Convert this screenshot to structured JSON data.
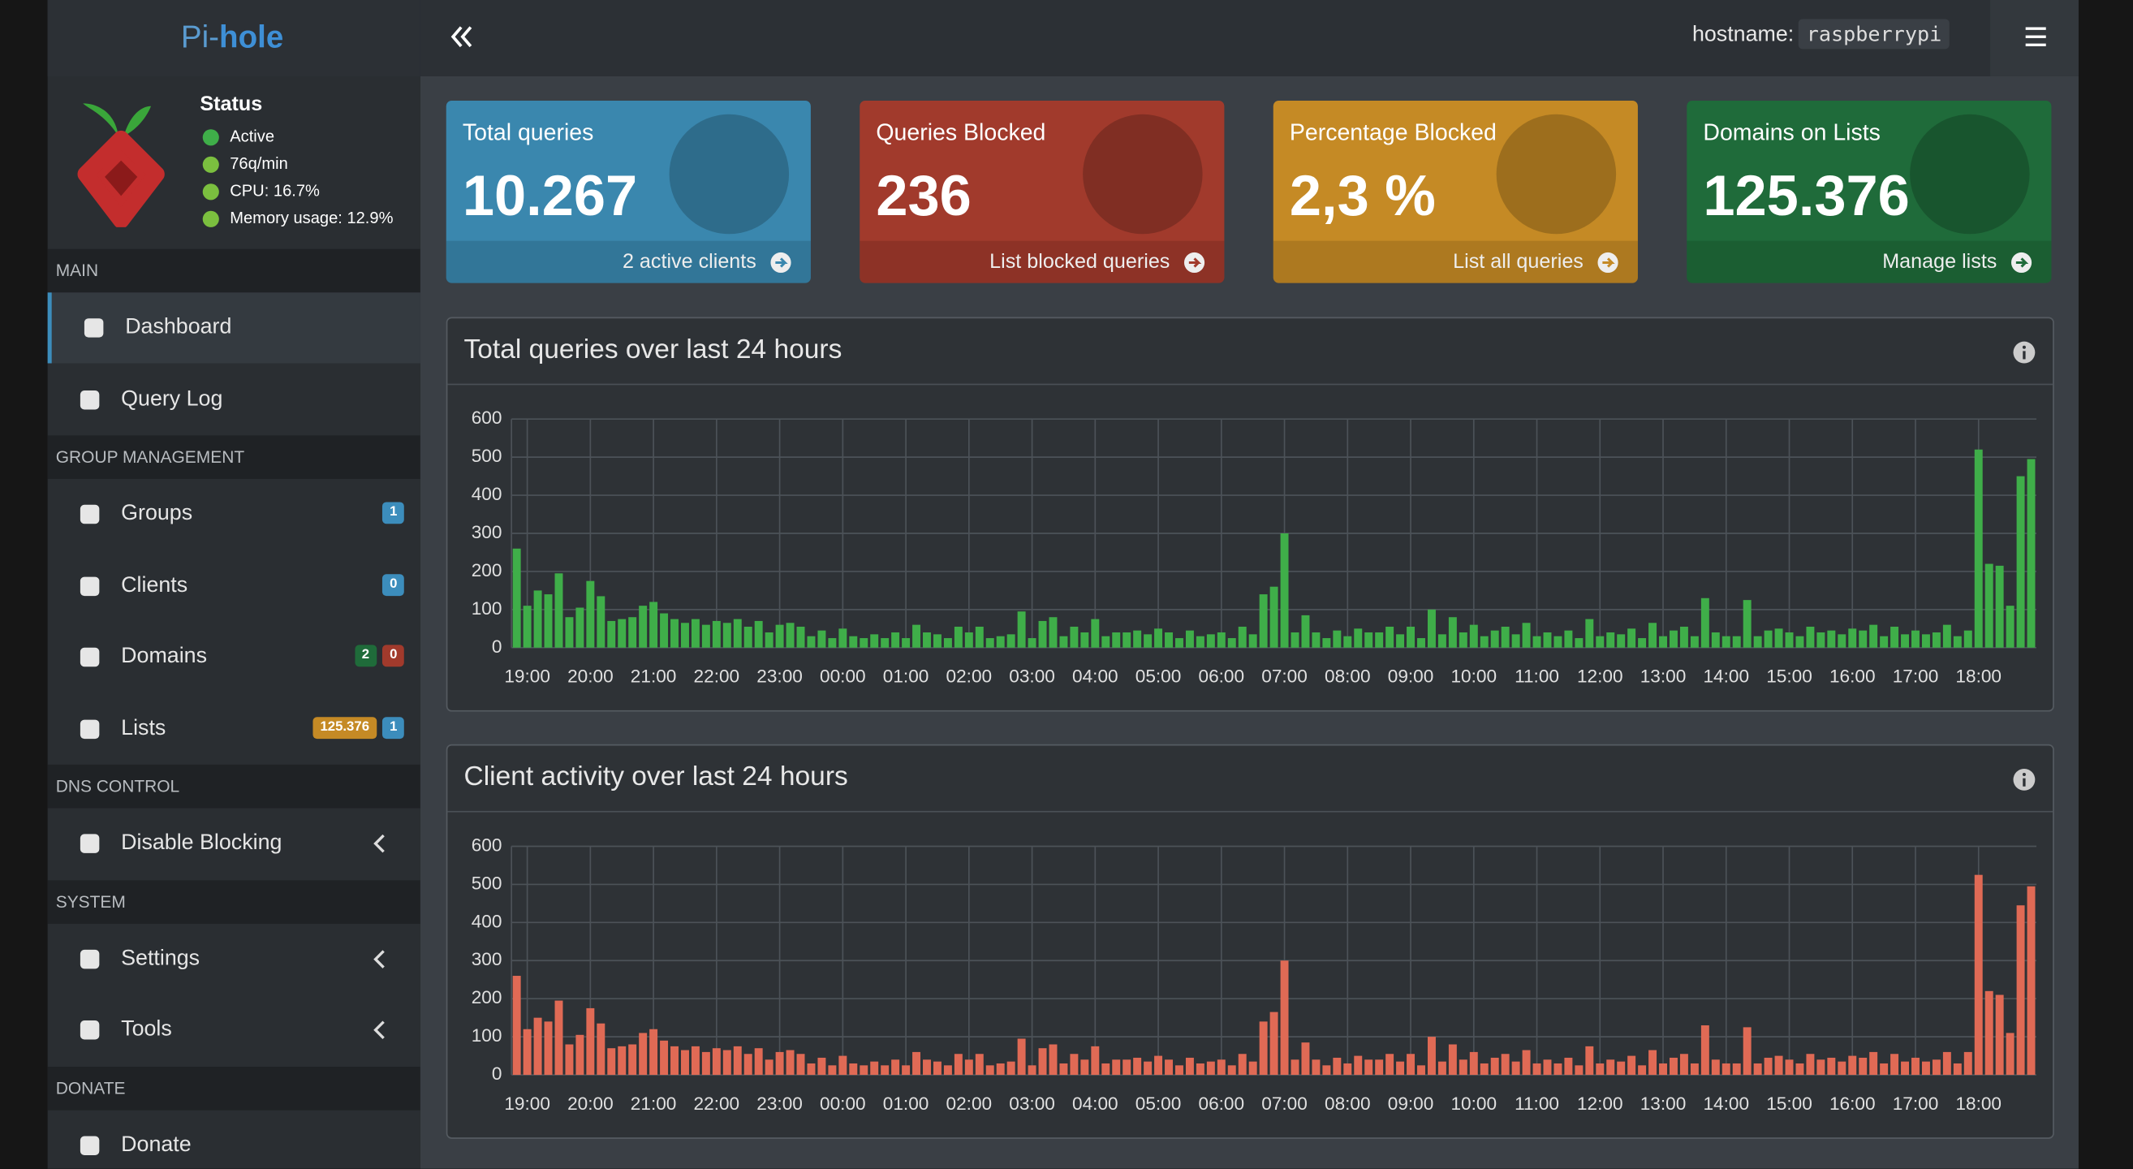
{
  "brand": {
    "pi": "Pi-",
    "hole": "hole"
  },
  "header": {
    "hostname_label": "hostname:",
    "hostname": "raspberrypi"
  },
  "status": {
    "title": "Status",
    "items": [
      "Active",
      "76q/min",
      "CPU: 16.7%",
      "Memory usage: 12.9%"
    ]
  },
  "sidebar": {
    "sections": [
      {
        "title": "MAIN",
        "items": [
          {
            "label": "Dashboard"
          },
          {
            "label": "Query Log"
          }
        ]
      },
      {
        "title": "GROUP MANAGEMENT",
        "items": [
          {
            "label": "Groups",
            "badges": [
              "1"
            ]
          },
          {
            "label": "Clients",
            "badges": [
              "0"
            ]
          },
          {
            "label": "Domains",
            "badges": [
              "2",
              "0"
            ]
          },
          {
            "label": "Lists",
            "badges": [
              "125.376",
              "1"
            ]
          }
        ]
      },
      {
        "title": "DNS CONTROL",
        "items": [
          {
            "label": "Disable Blocking"
          }
        ]
      },
      {
        "title": "SYSTEM",
        "items": [
          {
            "label": "Settings"
          },
          {
            "label": "Tools"
          }
        ]
      },
      {
        "title": "DONATE",
        "items": [
          {
            "label": "Donate"
          }
        ]
      }
    ]
  },
  "cards": [
    {
      "title": "Total queries",
      "value": "10.267",
      "link": "2 active clients",
      "color": "#3a87ae"
    },
    {
      "title": "Queries Blocked",
      "value": "236",
      "link": "List blocked queries",
      "color": "#a13a2c"
    },
    {
      "title": "Percentage Blocked",
      "value": "2,3 %",
      "link": "List all queries",
      "color": "#c58a25"
    },
    {
      "title": "Domains on Lists",
      "value": "125.376",
      "link": "Manage lists",
      "color": "#1f6b3a"
    }
  ],
  "chart_data": [
    {
      "type": "bar",
      "title": "Total queries over last 24 hours",
      "categories": [
        null,
        "19:00",
        null,
        null,
        null,
        null,
        null,
        "20:00",
        null,
        null,
        null,
        null,
        null,
        "21:00",
        null,
        null,
        null,
        null,
        null,
        "22:00",
        null,
        null,
        null,
        null,
        null,
        "23:00",
        null,
        null,
        null,
        null,
        null,
        "00:00",
        null,
        null,
        null,
        null,
        null,
        "01:00",
        null,
        null,
        null,
        null,
        null,
        "02:00",
        null,
        null,
        null,
        null,
        null,
        "03:00",
        null,
        null,
        null,
        null,
        null,
        "04:00",
        null,
        null,
        null,
        null,
        null,
        "05:00",
        null,
        null,
        null,
        null,
        null,
        "06:00",
        null,
        null,
        null,
        null,
        null,
        "07:00",
        null,
        null,
        null,
        null,
        null,
        "08:00",
        null,
        null,
        null,
        null,
        null,
        "09:00",
        null,
        null,
        null,
        null,
        null,
        "10:00",
        null,
        null,
        null,
        null,
        null,
        "11:00",
        null,
        null,
        null,
        null,
        null,
        "12:00",
        null,
        null,
        null,
        null,
        null,
        "13:00",
        null,
        null,
        null,
        null,
        null,
        "14:00",
        null,
        null,
        null,
        null,
        null,
        "15:00",
        null,
        null,
        null,
        null,
        null,
        "16:00",
        null,
        null,
        null,
        null,
        null,
        "17:00",
        null,
        null,
        null,
        null,
        null,
        "18:00",
        null,
        null,
        null,
        null,
        null
      ],
      "series": [
        {
          "color": "#3fae49",
          "values": [
            260,
            110,
            150,
            140,
            195,
            80,
            105,
            175,
            135,
            70,
            75,
            80,
            110,
            120,
            90,
            75,
            65,
            75,
            60,
            70,
            65,
            75,
            55,
            70,
            40,
            60,
            65,
            55,
            30,
            45,
            25,
            50,
            30,
            25,
            35,
            25,
            40,
            25,
            60,
            40,
            35,
            25,
            55,
            40,
            55,
            25,
            30,
            35,
            95,
            25,
            70,
            80,
            30,
            55,
            40,
            75,
            30,
            40,
            40,
            45,
            35,
            50,
            40,
            25,
            45,
            30,
            35,
            40,
            25,
            55,
            35,
            140,
            160,
            300,
            40,
            85,
            40,
            25,
            45,
            30,
            50,
            40,
            40,
            55,
            35,
            55,
            25,
            100,
            35,
            80,
            40,
            60,
            30,
            45,
            55,
            35,
            65,
            30,
            40,
            30,
            45,
            25,
            75,
            30,
            40,
            35,
            50,
            25,
            65,
            30,
            45,
            55,
            30,
            130,
            40,
            30,
            30,
            125,
            30,
            45,
            50,
            40,
            30,
            55,
            40,
            45,
            35,
            50,
            45,
            60,
            30,
            55,
            35,
            45,
            35,
            40,
            60,
            30,
            45,
            520,
            220,
            215,
            110,
            450,
            495
          ]
        }
      ],
      "ylim": [
        0,
        600
      ],
      "yticks": [
        0,
        100,
        200,
        300,
        400,
        500,
        600
      ],
      "grid": true
    },
    {
      "type": "bar",
      "title": "Client activity over last 24 hours",
      "categories": [
        null,
        "19:00",
        null,
        null,
        null,
        null,
        null,
        "20:00",
        null,
        null,
        null,
        null,
        null,
        "21:00",
        null,
        null,
        null,
        null,
        null,
        "22:00",
        null,
        null,
        null,
        null,
        null,
        "23:00",
        null,
        null,
        null,
        null,
        null,
        "00:00",
        null,
        null,
        null,
        null,
        null,
        "01:00",
        null,
        null,
        null,
        null,
        null,
        "02:00",
        null,
        null,
        null,
        null,
        null,
        "03:00",
        null,
        null,
        null,
        null,
        null,
        "04:00",
        null,
        null,
        null,
        null,
        null,
        "05:00",
        null,
        null,
        null,
        null,
        null,
        "06:00",
        null,
        null,
        null,
        null,
        null,
        "07:00",
        null,
        null,
        null,
        null,
        null,
        "08:00",
        null,
        null,
        null,
        null,
        null,
        "09:00",
        null,
        null,
        null,
        null,
        null,
        "10:00",
        null,
        null,
        null,
        null,
        null,
        "11:00",
        null,
        null,
        null,
        null,
        null,
        "12:00",
        null,
        null,
        null,
        null,
        null,
        "13:00",
        null,
        null,
        null,
        null,
        null,
        "14:00",
        null,
        null,
        null,
        null,
        null,
        "15:00",
        null,
        null,
        null,
        null,
        null,
        "16:00",
        null,
        null,
        null,
        null,
        null,
        "17:00",
        null,
        null,
        null,
        null,
        null,
        "18:00",
        null,
        null,
        null,
        null,
        null
      ],
      "series": [
        {
          "color": "#e06a55",
          "values": [
            260,
            120,
            150,
            140,
            195,
            80,
            105,
            175,
            135,
            70,
            75,
            80,
            110,
            120,
            90,
            75,
            65,
            75,
            60,
            70,
            65,
            75,
            55,
            70,
            40,
            60,
            65,
            55,
            30,
            45,
            25,
            50,
            30,
            25,
            35,
            25,
            40,
            25,
            60,
            40,
            35,
            25,
            55,
            40,
            55,
            25,
            30,
            35,
            95,
            25,
            70,
            80,
            30,
            55,
            40,
            75,
            30,
            40,
            40,
            45,
            35,
            50,
            40,
            25,
            45,
            30,
            35,
            40,
            25,
            55,
            35,
            140,
            165,
            300,
            40,
            85,
            40,
            25,
            45,
            30,
            50,
            40,
            40,
            55,
            35,
            55,
            25,
            100,
            35,
            80,
            40,
            60,
            30,
            45,
            55,
            35,
            65,
            30,
            40,
            30,
            45,
            25,
            75,
            30,
            40,
            35,
            50,
            25,
            65,
            30,
            45,
            55,
            30,
            130,
            40,
            30,
            30,
            125,
            30,
            45,
            50,
            40,
            30,
            55,
            40,
            45,
            35,
            50,
            45,
            60,
            30,
            55,
            35,
            45,
            35,
            40,
            60,
            30,
            60,
            525,
            220,
            210,
            110,
            445,
            495
          ]
        }
      ],
      "ylim": [
        0,
        600
      ],
      "yticks": [
        0,
        100,
        200,
        300,
        400,
        500,
        600
      ],
      "grid": true
    }
  ]
}
